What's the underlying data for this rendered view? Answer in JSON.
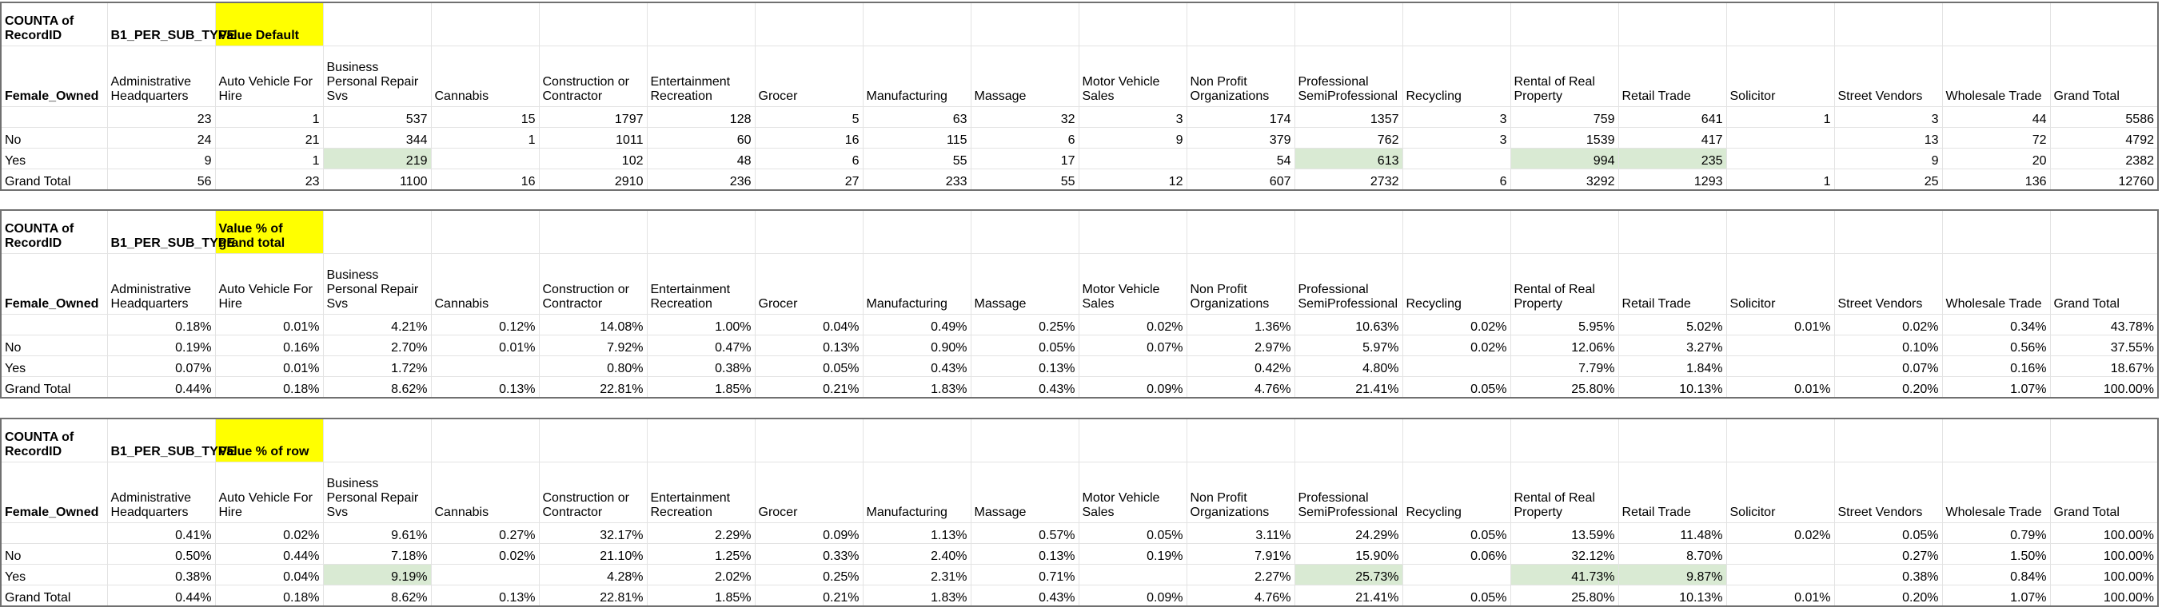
{
  "tables": [
    {
      "corner_label": "COUNTA of RecordID",
      "column_field": "B1_PER_SUB_TYPE",
      "value_label": "Value Default",
      "row_field": "Female_Owned",
      "headers": [
        "Administrative Headquarters",
        "Auto Vehicle For Hire",
        "Business Personal Repair Svs",
        "Cannabis",
        "Construction or Contractor",
        "Entertainment Recreation",
        "Grocer",
        "Manufacturing",
        "Massage",
        "Motor Vehicle Sales",
        "Non Profit Organizations",
        "Professional SemiProfessional",
        "Recycling",
        "Rental of Real Property",
        "Retail Trade",
        "Solicitor",
        "Street Vendors",
        "Wholesale Trade",
        "Grand Total"
      ],
      "rows": [
        {
          "label": "",
          "cells": [
            "23",
            "1",
            "537",
            "15",
            "1797",
            "128",
            "5",
            "63",
            "32",
            "3",
            "174",
            "1357",
            "3",
            "759",
            "641",
            "1",
            "3",
            "44",
            "5586"
          ]
        },
        {
          "label": "No",
          "cells": [
            "24",
            "21",
            "344",
            "1",
            "1011",
            "60",
            "16",
            "115",
            "6",
            "9",
            "379",
            "762",
            "3",
            "1539",
            "417",
            "",
            "13",
            "72",
            "4792"
          ]
        },
        {
          "label": "Yes",
          "cells": [
            "9",
            "1",
            "219",
            "",
            "102",
            "48",
            "6",
            "55",
            "17",
            "",
            "54",
            "613",
            "",
            "994",
            "235",
            "",
            "9",
            "20",
            "2382"
          ]
        },
        {
          "label": "Grand Total",
          "cells": [
            "56",
            "23",
            "1100",
            "16",
            "2910",
            "236",
            "27",
            "233",
            "55",
            "12",
            "607",
            "2732",
            "6",
            "3292",
            "1293",
            "1",
            "25",
            "136",
            "12760"
          ]
        }
      ]
    },
    {
      "corner_label": "COUNTA of RecordID",
      "column_field": "B1_PER_SUB_TYPE",
      "value_label": "Value % of grand total",
      "row_field": "Female_Owned",
      "headers": [
        "Administrative Headquarters",
        "Auto Vehicle For Hire",
        "Business Personal Repair Svs",
        "Cannabis",
        "Construction or Contractor",
        "Entertainment Recreation",
        "Grocer",
        "Manufacturing",
        "Massage",
        "Motor Vehicle Sales",
        "Non Profit Organizations",
        "Professional SemiProfessional",
        "Recycling",
        "Rental of Real Property",
        "Retail Trade",
        "Solicitor",
        "Street Vendors",
        "Wholesale Trade",
        "Grand Total"
      ],
      "rows": [
        {
          "label": "",
          "cells": [
            "0.18%",
            "0.01%",
            "4.21%",
            "0.12%",
            "14.08%",
            "1.00%",
            "0.04%",
            "0.49%",
            "0.25%",
            "0.02%",
            "1.36%",
            "10.63%",
            "0.02%",
            "5.95%",
            "5.02%",
            "0.01%",
            "0.02%",
            "0.34%",
            "43.78%"
          ]
        },
        {
          "label": "No",
          "cells": [
            "0.19%",
            "0.16%",
            "2.70%",
            "0.01%",
            "7.92%",
            "0.47%",
            "0.13%",
            "0.90%",
            "0.05%",
            "0.07%",
            "2.97%",
            "5.97%",
            "0.02%",
            "12.06%",
            "3.27%",
            "",
            "0.10%",
            "0.56%",
            "37.55%"
          ]
        },
        {
          "label": "Yes",
          "cells": [
            "0.07%",
            "0.01%",
            "1.72%",
            "",
            "0.80%",
            "0.38%",
            "0.05%",
            "0.43%",
            "0.13%",
            "",
            "0.42%",
            "4.80%",
            "",
            "7.79%",
            "1.84%",
            "",
            "0.07%",
            "0.16%",
            "18.67%"
          ]
        },
        {
          "label": "Grand Total",
          "cells": [
            "0.44%",
            "0.18%",
            "8.62%",
            "0.13%",
            "22.81%",
            "1.85%",
            "0.21%",
            "1.83%",
            "0.43%",
            "0.09%",
            "4.76%",
            "21.41%",
            "0.05%",
            "25.80%",
            "10.13%",
            "0.01%",
            "0.20%",
            "1.07%",
            "100.00%"
          ]
        }
      ]
    },
    {
      "corner_label": "COUNTA of RecordID",
      "column_field": "B1_PER_SUB_TYPE",
      "value_label": "Value % of row",
      "row_field": "Female_Owned",
      "headers": [
        "Administrative Headquarters",
        "Auto Vehicle For Hire",
        "Business Personal Repair Svs",
        "Cannabis",
        "Construction or Contractor",
        "Entertainment Recreation",
        "Grocer",
        "Manufacturing",
        "Massage",
        "Motor Vehicle Sales",
        "Non Profit Organizations",
        "Professional SemiProfessional",
        "Recycling",
        "Rental of Real Property",
        "Retail Trade",
        "Solicitor",
        "Street Vendors",
        "Wholesale Trade",
        "Grand Total"
      ],
      "rows": [
        {
          "label": "",
          "cells": [
            "0.41%",
            "0.02%",
            "9.61%",
            "0.27%",
            "32.17%",
            "2.29%",
            "0.09%",
            "1.13%",
            "0.57%",
            "0.05%",
            "3.11%",
            "24.29%",
            "0.05%",
            "13.59%",
            "11.48%",
            "0.02%",
            "0.05%",
            "0.79%",
            "100.00%"
          ]
        },
        {
          "label": "No",
          "cells": [
            "0.50%",
            "0.44%",
            "7.18%",
            "0.02%",
            "21.10%",
            "1.25%",
            "0.33%",
            "2.40%",
            "0.13%",
            "0.19%",
            "7.91%",
            "15.90%",
            "0.06%",
            "32.12%",
            "8.70%",
            "",
            "0.27%",
            "1.50%",
            "100.00%"
          ]
        },
        {
          "label": "Yes",
          "cells": [
            "0.38%",
            "0.04%",
            "9.19%",
            "",
            "4.28%",
            "2.02%",
            "0.25%",
            "2.31%",
            "0.71%",
            "",
            "2.27%",
            "25.73%",
            "",
            "41.73%",
            "9.87%",
            "",
            "0.38%",
            "0.84%",
            "100.00%"
          ]
        },
        {
          "label": "Grand Total",
          "cells": [
            "0.44%",
            "0.18%",
            "8.62%",
            "0.13%",
            "22.81%",
            "1.85%",
            "0.21%",
            "1.83%",
            "0.43%",
            "0.09%",
            "4.76%",
            "21.41%",
            "0.05%",
            "25.80%",
            "10.13%",
            "0.01%",
            "0.20%",
            "1.07%",
            "100.00%"
          ]
        }
      ]
    }
  ],
  "highlight_colors": {
    "value_label": "#ffff00",
    "highlighted_cell": "#d9ead3",
    "border": "#707070",
    "gridline": "#e3e3e3"
  }
}
